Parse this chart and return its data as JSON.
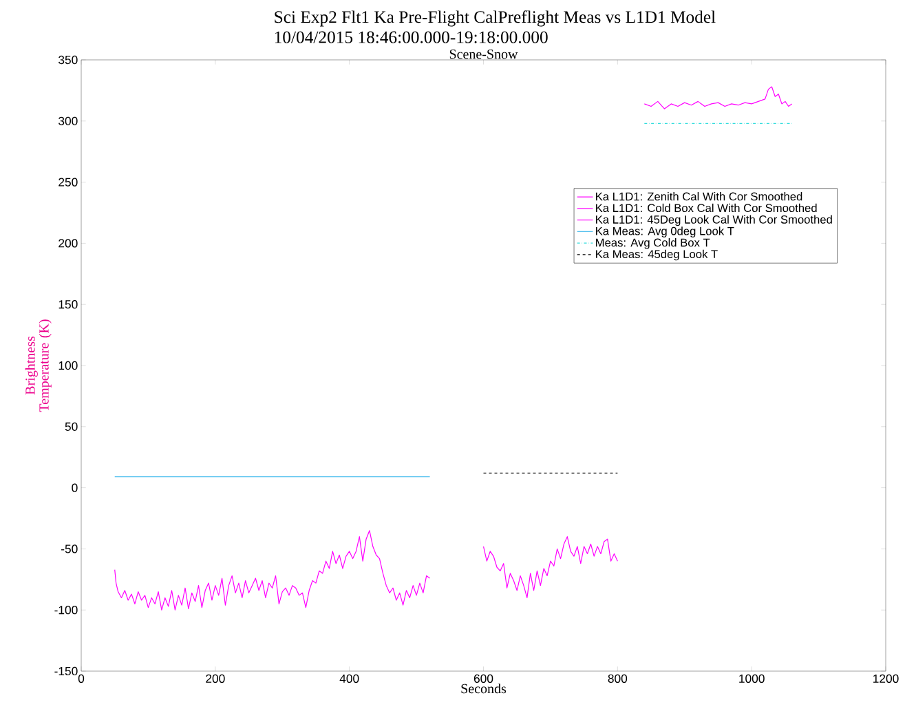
{
  "chart_data": {
    "type": "line",
    "title": "Sci Exp2 Flt1 Ka Pre-Flight CalPreflight Meas vs L1D1 Model",
    "subtitle": "10/04/2015 18:46:00.000-19:18:00.000",
    "annotations": [
      "Scene-Snow"
    ],
    "xlabel": "Seconds",
    "ylabel": "Brightness Temperature (K)",
    "xlim": [
      0,
      1200
    ],
    "ylim": [
      -150,
      350
    ],
    "xticks": [
      0,
      200,
      400,
      600,
      800,
      1000,
      1200
    ],
    "yticks": [
      -150,
      -100,
      -50,
      0,
      50,
      100,
      150,
      200,
      250,
      300,
      350
    ],
    "grid": false,
    "legend": "right",
    "series": [
      {
        "name": "Ka L1D1: Zenith Cal With Cor Smoothed",
        "color": "#ff00ff",
        "line_style": "solid",
        "x": [
          50,
          52,
          55,
          60,
          65,
          70,
          75,
          80,
          85,
          90,
          95,
          100,
          105,
          110,
          115,
          120,
          125,
          130,
          135,
          140,
          145,
          150,
          155,
          160,
          165,
          170,
          175,
          180,
          185,
          190,
          195,
          200,
          205,
          210,
          215,
          220,
          225,
          230,
          235,
          240,
          245,
          250,
          255,
          260,
          265,
          270,
          275,
          280,
          285,
          290,
          295,
          300,
          305,
          310,
          315,
          320,
          325,
          330,
          335,
          340,
          345,
          350,
          355,
          360,
          365,
          370,
          375,
          380,
          385,
          390,
          395,
          400,
          405,
          410,
          415,
          420,
          425,
          430,
          435,
          440,
          445,
          450,
          455,
          460,
          465,
          470,
          475,
          480,
          485,
          490,
          495,
          500,
          505,
          510,
          515,
          520
        ],
        "values": [
          -67,
          -78,
          -85,
          -90,
          -84,
          -92,
          -87,
          -95,
          -85,
          -92,
          -88,
          -98,
          -90,
          -95,
          -85,
          -100,
          -90,
          -97,
          -84,
          -100,
          -88,
          -96,
          -82,
          -99,
          -86,
          -93,
          -80,
          -98,
          -84,
          -78,
          -92,
          -80,
          -88,
          -74,
          -96,
          -80,
          -72,
          -86,
          -78,
          -90,
          -76,
          -86,
          -80,
          -74,
          -84,
          -76,
          -90,
          -78,
          -82,
          -72,
          -95,
          -85,
          -82,
          -88,
          -80,
          -82,
          -88,
          -86,
          -98,
          -84,
          -76,
          -78,
          -68,
          -70,
          -60,
          -66,
          -52,
          -62,
          -55,
          -66,
          -56,
          -52,
          -58,
          -52,
          -40,
          -60,
          -42,
          -35,
          -48,
          -55,
          -58,
          -70,
          -80,
          -86,
          -82,
          -92,
          -86,
          -96,
          -84,
          -90,
          -80,
          -88,
          -78,
          -86,
          -72,
          -74
        ]
      },
      {
        "name": "Ka L1D1: Cold Box Cal With Cor Smoothed",
        "color": "#ff00ff",
        "line_style": "solid",
        "x": [
          840,
          850,
          860,
          870,
          880,
          890,
          900,
          910,
          920,
          930,
          940,
          950,
          960,
          970,
          980,
          990,
          1000,
          1010,
          1020,
          1025,
          1030,
          1035,
          1040,
          1045,
          1050,
          1055,
          1060
        ],
        "values": [
          314,
          312,
          316,
          310,
          314,
          312,
          315,
          313,
          316,
          312,
          314,
          315,
          312,
          314,
          313,
          315,
          314,
          316,
          318,
          326,
          328,
          320,
          322,
          314,
          316,
          312,
          314
        ]
      },
      {
        "name": "Ka L1D1: 45Deg Look Cal With Cor Smoothed",
        "color": "#ff00ff",
        "line_style": "solid",
        "x": [
          600,
          605,
          610,
          615,
          620,
          625,
          630,
          635,
          640,
          645,
          650,
          655,
          660,
          665,
          670,
          675,
          680,
          685,
          690,
          695,
          700,
          705,
          710,
          715,
          720,
          725,
          730,
          735,
          740,
          745,
          750,
          755,
          760,
          765,
          770,
          775,
          780,
          785,
          790,
          795,
          800
        ],
        "values": [
          -48,
          -60,
          -52,
          -56,
          -65,
          -68,
          -62,
          -82,
          -70,
          -76,
          -84,
          -72,
          -80,
          -90,
          -70,
          -84,
          -68,
          -80,
          -66,
          -72,
          -60,
          -64,
          -50,
          -58,
          -46,
          -40,
          -52,
          -56,
          -48,
          -62,
          -48,
          -54,
          -46,
          -56,
          -48,
          -54,
          -44,
          -42,
          -60,
          -54,
          -60
        ]
      },
      {
        "name": "Ka Meas: Avg 0deg Look T",
        "color": "#4dbeee",
        "line_style": "solid",
        "x": [
          50,
          520
        ],
        "values": [
          9,
          9
        ]
      },
      {
        "name": "Meas: Avg Cold Box T",
        "color": "#33dddd",
        "line_style": "dashdot",
        "x": [
          840,
          1060
        ],
        "values": [
          298,
          298
        ]
      },
      {
        "name": "Ka Meas: 45deg Look T",
        "color": "#000000",
        "line_style": "dashed",
        "x": [
          600,
          800
        ],
        "values": [
          12,
          12
        ]
      }
    ]
  }
}
